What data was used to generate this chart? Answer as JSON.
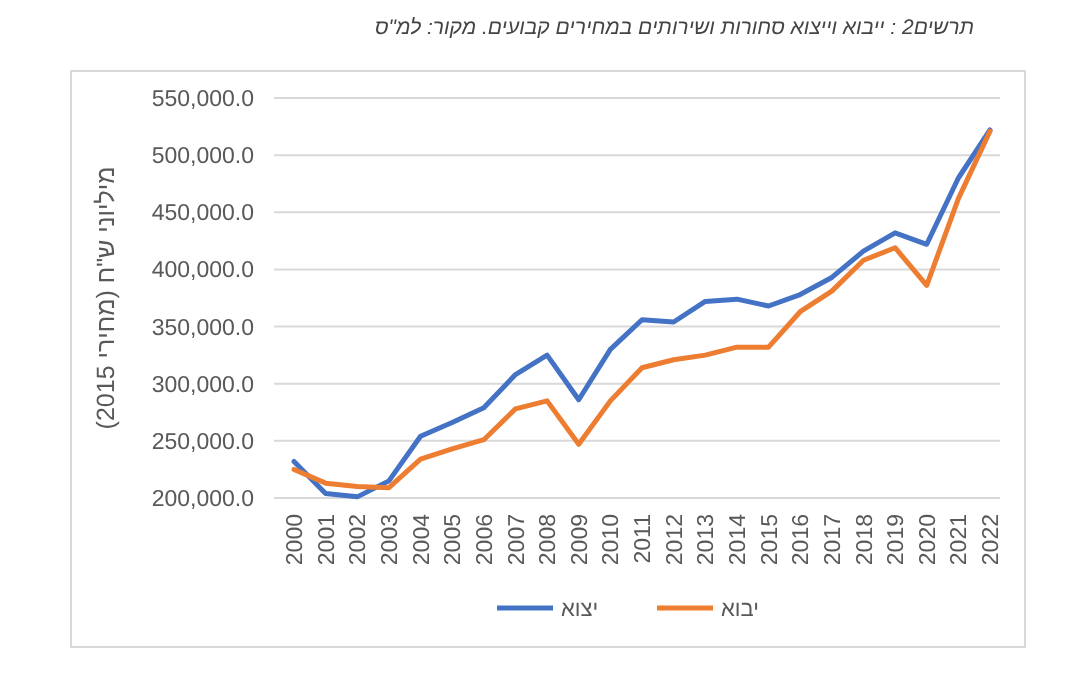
{
  "chart_data": {
    "type": "line",
    "title": "תרשים2 : ייבוא וייצוא סחורות ושירותים במחירים קבועים. מקור: למ\"ס",
    "ylabel": "מיליוני ש\"ח (מחירי 2015)",
    "categories": [
      "2000",
      "2001",
      "2002",
      "2003",
      "2004",
      "2005",
      "2006",
      "2007",
      "2008",
      "2009",
      "2010",
      "2011",
      "2012",
      "2013",
      "2014",
      "2015",
      "2016",
      "2017",
      "2018",
      "2019",
      "2020",
      "2021",
      "2022"
    ],
    "series": [
      {
        "name": "יצוא",
        "color": "#4472c4",
        "values": [
          232000,
          204000,
          201000,
          215000,
          254000,
          266000,
          279000,
          308000,
          325000,
          286000,
          330000,
          356000,
          354000,
          372000,
          374000,
          368000,
          378000,
          393000,
          416000,
          432000,
          422000,
          480000,
          522000
        ]
      },
      {
        "name": "יבוא",
        "color": "#ed7d31",
        "values": [
          225000,
          213000,
          210000,
          209000,
          234000,
          243000,
          251000,
          278000,
          285000,
          247000,
          285000,
          314000,
          321000,
          325000,
          332000,
          332000,
          363000,
          381000,
          408000,
          419000,
          386000,
          462000,
          521000
        ]
      }
    ],
    "ylim": [
      200000,
      550000
    ],
    "yticks": [
      {
        "value": 200000,
        "label": "200,000.0"
      },
      {
        "value": 250000,
        "label": "250,000.0"
      },
      {
        "value": 300000,
        "label": "300,000.0"
      },
      {
        "value": 350000,
        "label": "350,000.0"
      },
      {
        "value": 400000,
        "label": "400,000.0"
      },
      {
        "value": 450000,
        "label": "450,000.0"
      },
      {
        "value": 500000,
        "label": "500,000.0"
      },
      {
        "value": 550000,
        "label": "550,000.0"
      }
    ],
    "grid": "y",
    "legend": "bottom",
    "marker": "none",
    "line_style": "solid"
  }
}
